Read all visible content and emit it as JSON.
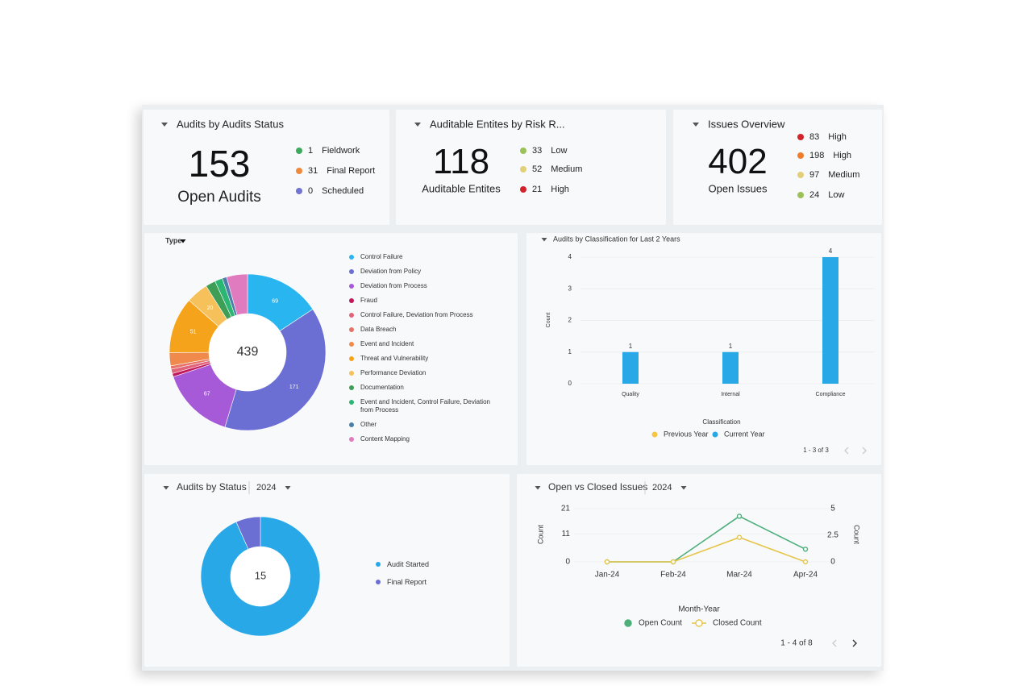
{
  "cards": [
    {
      "title": "Audits by Audits Status",
      "value": 153,
      "label": "Open Audits",
      "items": [
        {
          "value": 1,
          "label": "Fieldwork",
          "color": "#3daa5c"
        },
        {
          "value": 31,
          "label": "Final Report",
          "color": "#ef8a3c"
        },
        {
          "value": 0,
          "label": "Scheduled",
          "color": "#7274d1"
        }
      ]
    },
    {
      "title": "Auditable Entites by Risk R...",
      "value": 118,
      "label": "Auditable Entites",
      "items": [
        {
          "value": 33,
          "label": "Low",
          "color": "#9bc158"
        },
        {
          "value": 52,
          "label": "Medium",
          "color": "#e3cf7a"
        },
        {
          "value": 21,
          "label": "High",
          "color": "#d3222a"
        }
      ]
    },
    {
      "title": "Issues Overview",
      "value": 402,
      "label": "Open Issues",
      "items": [
        {
          "value": 83,
          "label": "High",
          "color": "#d3222a"
        },
        {
          "value": 198,
          "label": "High",
          "color": "#ef7d2a"
        },
        {
          "value": 97,
          "label": "Medium",
          "color": "#e3cf7a"
        },
        {
          "value": 24,
          "label": "Low",
          "color": "#9bc158"
        }
      ]
    }
  ],
  "chart_data": [
    {
      "type": "pie",
      "title": "Type",
      "total": 439,
      "categories": [
        "Control Failure",
        "Deviation from Policy",
        "Deviation from Process",
        "Fraud",
        "Control Failure, Deviation from Process",
        "Data Breach",
        "Event and Incident",
        "Threat and Vulnerability",
        "Performance Deviation",
        "Documentation",
        "Event and Incident, Control Failure, Deviation from Process",
        "Other",
        "Content Mapping"
      ],
      "values": [
        69,
        171,
        67,
        3,
        4,
        3,
        12,
        51,
        20,
        9,
        7,
        4,
        19
      ],
      "colors": [
        "#29b6f0",
        "#6b6fd4",
        "#a75ad8",
        "#c2185b",
        "#e0637a",
        "#e57368",
        "#ef8a4c",
        "#f5a31a",
        "#f6c15b",
        "#3e9e55",
        "#2bb673",
        "#4a7fa8",
        "#e07bbf"
      ]
    },
    {
      "type": "bar",
      "title": "Audits by Classification for Last 2 Years",
      "x_label": "Classification",
      "y_label": "Count",
      "categories": [
        "Quality",
        "Internal",
        "Compliance"
      ],
      "series": [
        {
          "name": "Previous Year",
          "color": "#f6c543",
          "values": [
            0,
            0,
            0
          ]
        },
        {
          "name": "Current Year",
          "color": "#29a8e8",
          "values": [
            1,
            1,
            4
          ]
        }
      ],
      "ylim": [
        0,
        4
      ],
      "yticks": [
        0,
        1,
        2,
        3,
        4
      ],
      "grid": true,
      "pagination": "1 - 3 of 3"
    },
    {
      "type": "pie",
      "title": "Audits by Status",
      "filter": "2024",
      "total": 15,
      "categories": [
        "Audit Started",
        "Final Report"
      ],
      "values": [
        14,
        1
      ],
      "colors": [
        "#29a8e8",
        "#6b6fd4"
      ]
    },
    {
      "type": "line",
      "title": "Open vs Closed Issues",
      "filter": "2024",
      "x_label": "Month-Year",
      "y_label": "Count",
      "y2_label": "Count",
      "categories": [
        "Jan-24",
        "Feb-24",
        "Mar-24",
        "Apr-24"
      ],
      "series": [
        {
          "name": "Open Count",
          "color": "#4caf7a",
          "values": [
            0,
            0,
            18,
            5
          ]
        },
        {
          "name": "Closed Count",
          "color": "#e5c54a",
          "axis": "y2",
          "values": [
            0,
            0,
            2.3,
            0
          ]
        }
      ],
      "ylim": [
        0,
        21
      ],
      "yticks": [
        0,
        11,
        21
      ],
      "y2lim": [
        0,
        5
      ],
      "y2ticks": [
        0,
        2.5,
        5
      ],
      "grid": true,
      "pagination": "1 - 4 of 8"
    }
  ]
}
